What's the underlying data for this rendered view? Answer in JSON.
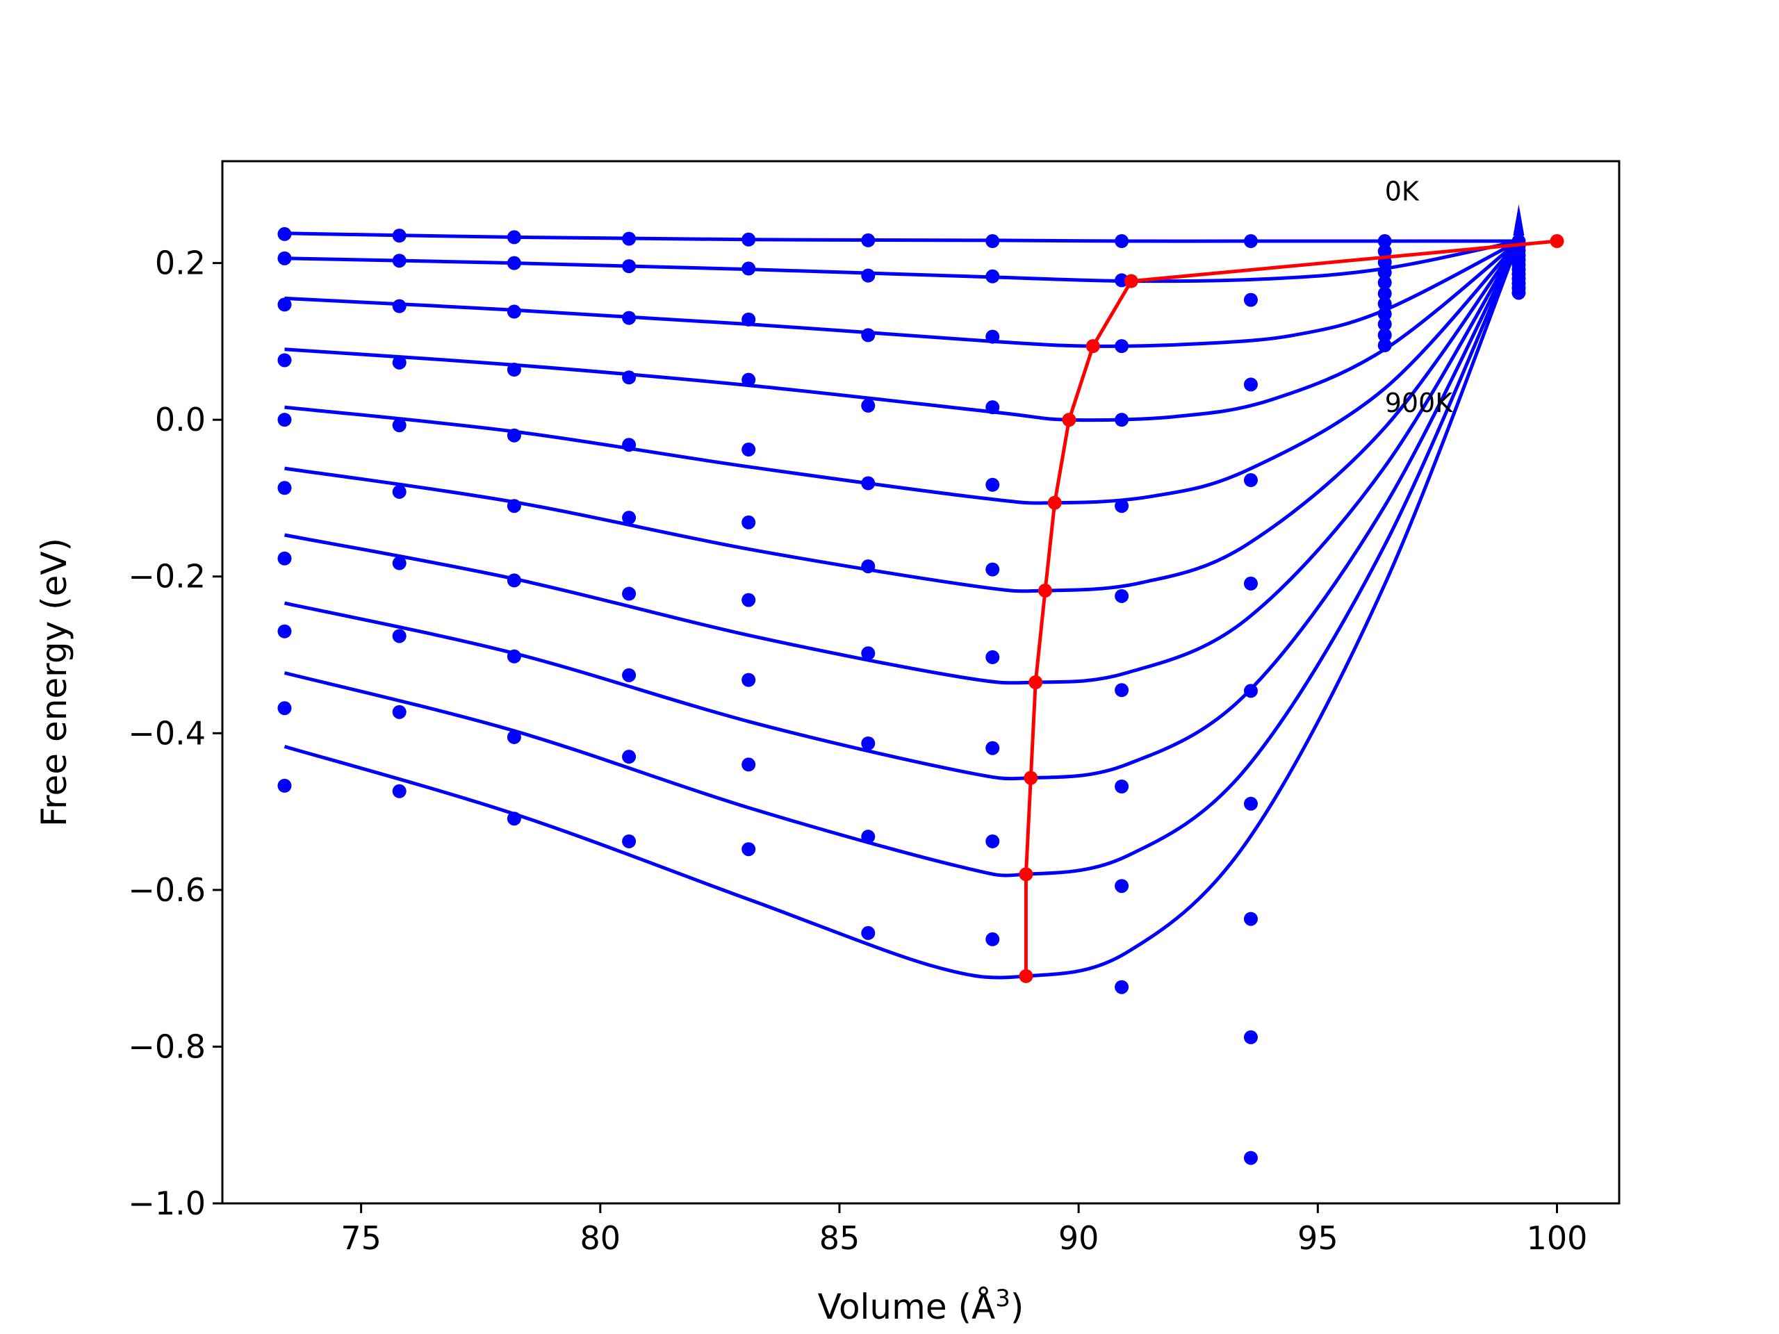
{
  "chart_data": {
    "type": "line",
    "title": "",
    "xlabel": "Volume (Å",
    "xlabel_sup": "3",
    "xlabel_close": ")",
    "ylabel": "Free energy (eV)",
    "xlim": [
      72.1,
      101.3
    ],
    "ylim": [
      -1.0,
      0.33
    ],
    "xticks": [
      75,
      80,
      85,
      90,
      95,
      100
    ],
    "xtick_labels": [
      "75",
      "80",
      "85",
      "90",
      "95",
      "100"
    ],
    "yticks": [
      0.2,
      0.0,
      -0.2,
      -0.4,
      -0.6,
      -0.8,
      -1.0
    ],
    "ytick_labels": [
      "0.2",
      "0.0",
      "−0.2",
      "−0.4",
      "−0.6",
      "−0.8",
      "−1.0"
    ],
    "grid": false,
    "colors": {
      "curves": "#0000ff",
      "points": "#0000ff",
      "minimum_path": "#ff0000"
    },
    "annotations": [
      {
        "text": "0K",
        "x": 96.4,
        "y": 0.28
      },
      {
        "text": "900K",
        "x": 96.4,
        "y": 0.01
      }
    ],
    "x": [
      73.4,
      75.8,
      78.2,
      80.6,
      83.1,
      85.6,
      88.2,
      90.9,
      93.6
    ],
    "series": [
      {
        "values": [
          0.237,
          0.235,
          0.233,
          0.231,
          0.23,
          0.229,
          0.228,
          0.228,
          0.228
        ]
      },
      {
        "values": [
          0.206,
          0.203,
          0.2,
          0.196,
          0.193,
          0.184,
          0.183,
          0.178,
          0.153
        ]
      },
      {
        "values": [
          0.147,
          0.145,
          0.138,
          0.13,
          0.128,
          0.108,
          0.106,
          0.094,
          0.045
        ]
      },
      {
        "values": [
          0.076,
          0.073,
          0.064,
          0.054,
          0.051,
          0.018,
          0.016,
          0.0,
          -0.077
        ]
      },
      {
        "values": [
          0.0,
          -0.007,
          -0.02,
          -0.032,
          -0.038,
          -0.081,
          -0.083,
          -0.11,
          -0.209
        ]
      },
      {
        "values": [
          -0.087,
          -0.092,
          -0.11,
          -0.125,
          -0.131,
          -0.187,
          -0.191,
          -0.225,
          -0.346
        ]
      },
      {
        "values": [
          -0.177,
          -0.183,
          -0.205,
          -0.222,
          -0.23,
          -0.298,
          -0.303,
          -0.345,
          -0.49
        ]
      },
      {
        "values": [
          -0.27,
          -0.276,
          -0.302,
          -0.326,
          -0.332,
          -0.413,
          -0.419,
          -0.468,
          -0.637
        ]
      },
      {
        "values": [
          -0.368,
          -0.373,
          -0.405,
          -0.43,
          -0.44,
          -0.532,
          -0.538,
          -0.595,
          -0.788
        ]
      },
      {
        "values": [
          -0.467,
          -0.474,
          -0.509,
          -0.538,
          -0.548,
          -0.655,
          -0.663,
          -0.724,
          -0.942
        ]
      }
    ],
    "fit_curves": [
      {
        "x": [
          73.4,
          78.2,
          83.1,
          88.2,
          91.1,
          94.0,
          96.4,
          99.2
        ],
        "y": [
          0.238,
          0.233,
          0.23,
          0.229,
          0.228,
          0.228,
          0.228,
          0.228
        ]
      },
      {
        "x": [
          73.4,
          78.2,
          83.1,
          88.2,
          91.1,
          94.0,
          96.4,
          99.2
        ],
        "y": [
          0.206,
          0.2,
          0.192,
          0.182,
          0.177,
          0.18,
          0.193,
          0.228
        ]
      },
      {
        "x": [
          73.4,
          78.2,
          83.1,
          88.2,
          90.3,
          92.5,
          94.5,
          96.4,
          99.2
        ],
        "y": [
          0.155,
          0.14,
          0.122,
          0.1,
          0.094,
          0.097,
          0.108,
          0.14,
          0.228
        ]
      },
      {
        "x": [
          73.4,
          78.2,
          83.1,
          88.2,
          89.8,
          92.0,
          94.0,
          96.4,
          99.2
        ],
        "y": [
          0.09,
          0.07,
          0.044,
          0.01,
          0.0,
          0.004,
          0.025,
          0.09,
          0.228
        ]
      },
      {
        "x": [
          73.4,
          78.2,
          83.1,
          88.0,
          89.5,
          91.5,
          93.5,
          96.4,
          99.2
        ],
        "y": [
          0.016,
          -0.015,
          -0.06,
          -0.1,
          -0.106,
          -0.098,
          -0.065,
          0.04,
          0.228
        ]
      },
      {
        "x": [
          73.4,
          78.2,
          83.1,
          87.8,
          89.3,
          91.3,
          93.5,
          96.4,
          99.2
        ],
        "y": [
          -0.062,
          -0.105,
          -0.165,
          -0.212,
          -0.218,
          -0.208,
          -0.16,
          -0.01,
          0.228
        ]
      },
      {
        "x": [
          73.4,
          78.2,
          83.1,
          87.5,
          89.1,
          91.0,
          93.5,
          96.4,
          99.2
        ],
        "y": [
          -0.147,
          -0.203,
          -0.275,
          -0.328,
          -0.335,
          -0.323,
          -0.255,
          -0.06,
          0.228
        ]
      },
      {
        "x": [
          73.4,
          78.2,
          83.1,
          87.5,
          89.0,
          91.0,
          93.5,
          96.4,
          99.2
        ],
        "y": [
          -0.234,
          -0.298,
          -0.385,
          -0.448,
          -0.457,
          -0.44,
          -0.35,
          -0.11,
          0.228
        ]
      },
      {
        "x": [
          73.4,
          78.2,
          83.1,
          87.5,
          88.9,
          91.0,
          93.5,
          96.4,
          99.2
        ],
        "y": [
          -0.323,
          -0.397,
          -0.495,
          -0.57,
          -0.58,
          -0.557,
          -0.445,
          -0.16,
          0.228
        ]
      },
      {
        "x": [
          73.4,
          78.2,
          83.1,
          87.0,
          88.9,
          91.0,
          93.5,
          96.4,
          99.2
        ],
        "y": [
          -0.417,
          -0.503,
          -0.612,
          -0.698,
          -0.71,
          -0.68,
          -0.54,
          -0.21,
          0.228
        ]
      }
    ],
    "minimum_path": {
      "x": [
        100.0,
        91.1,
        90.3,
        89.8,
        89.5,
        89.3,
        89.1,
        89.0,
        88.9,
        88.9
      ],
      "y": [
        0.228,
        0.177,
        0.094,
        0.0,
        -0.106,
        -0.218,
        -0.335,
        -0.457,
        -0.58,
        -0.71
      ]
    },
    "stacked_points": [
      {
        "x": 96.4,
        "y": [
          0.228,
          0.215,
          0.201,
          0.188,
          0.175,
          0.161,
          0.148,
          0.135,
          0.122,
          0.108,
          0.095
        ]
      },
      {
        "x": 99.2,
        "y": [
          0.228,
          0.222,
          0.216,
          0.21,
          0.204,
          0.198,
          0.192,
          0.186,
          0.18,
          0.174,
          0.168,
          0.162
        ]
      }
    ]
  }
}
